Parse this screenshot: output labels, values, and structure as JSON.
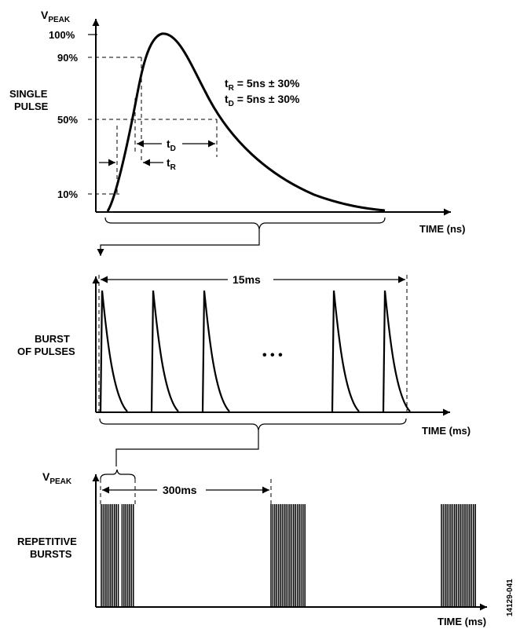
{
  "single": {
    "ylabel_main": "V",
    "ylabel_sub": "PEAK",
    "side_label_1": "SINGLE",
    "side_label_2": "PULSE",
    "tick_100": "100%",
    "tick_90": "90%",
    "tick_50": "50%",
    "tick_10": "10%",
    "tr_main": "t",
    "tr_sub": "R",
    "tr_text": " = 5ns ± 30%",
    "td_main": "t",
    "td_sub": "D",
    "td_text": " = 5ns ± 30%",
    "arrow_td_main": "t",
    "arrow_td_sub": "D",
    "arrow_tr_main": "t",
    "arrow_tr_sub": "R",
    "xlabel": "TIME (ns)"
  },
  "burst": {
    "side_label_1": "BURST",
    "side_label_2": "OF PULSES",
    "period_label": "15ms",
    "ellipsis": "• • •",
    "xlabel": "TIME (ms)"
  },
  "repetitive": {
    "ylabel_main": "V",
    "ylabel_sub": "PEAK",
    "side_label_1": "REPETITIVE",
    "side_label_2": "BURSTS",
    "period_label": "300ms",
    "xlabel": "TIME (ms)"
  },
  "figure_id": "14129-041"
}
